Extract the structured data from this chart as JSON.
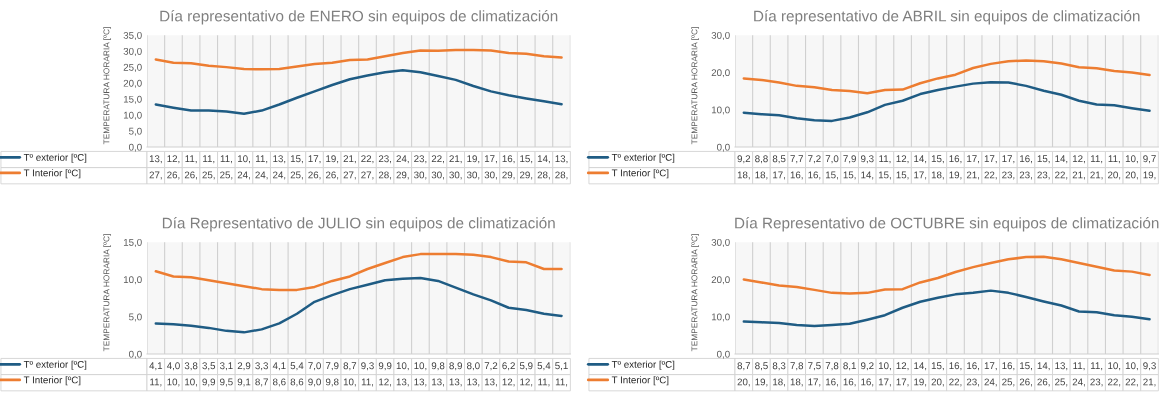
{
  "chart_data": [
    {
      "type": "line",
      "title": "Día representativo de ENERO sin equipos de climatización",
      "ylabel": "TEMPERATURA HORARIA [ºC]",
      "categories": [
        null,
        null,
        null,
        null,
        null,
        null,
        null,
        null,
        null,
        null,
        null,
        null,
        null,
        null,
        null,
        null,
        null,
        null,
        null,
        null,
        null,
        null,
        null,
        null
      ],
      "ylim": [
        0,
        35
      ],
      "yticks": [
        {
          "value": 0,
          "label": "0,0"
        },
        {
          "value": 5,
          "label": "5,0"
        },
        {
          "value": 10,
          "label": "10,0"
        },
        {
          "value": 15,
          "label": "15,0"
        },
        {
          "value": 20,
          "label": "20,0"
        },
        {
          "value": 25,
          "label": "25,0"
        },
        {
          "value": 30,
          "label": "30,0"
        },
        {
          "value": 35,
          "label": "35,0"
        }
      ],
      "grid": "x",
      "legend": "bottom",
      "series": [
        {
          "name": "Tº exterior [ºC]",
          "color": "#1f5c84",
          "values": [
            13.3,
            12.3,
            11.4,
            11.4,
            11.1,
            10.4,
            11.4,
            13.3,
            15.4,
            17.4,
            19.4,
            21.2,
            22.4,
            23.4,
            24.0,
            23.4,
            22.2,
            21.0,
            19.1,
            17.4,
            16.2,
            15.2,
            14.3,
            13.4
          ],
          "value_labels": [
            "13,",
            "12,",
            "11,",
            "11,",
            "11,",
            "10,",
            "11,",
            "13,",
            "15,",
            "17,",
            "19,",
            "21,",
            "22,",
            "23,",
            "24,",
            "23,",
            "22,",
            "21,",
            "19,",
            "17,",
            "16,",
            "15,",
            "14,",
            "13,"
          ]
        },
        {
          "name": "T Interior [ºC]",
          "color": "#ed7d31",
          "values": [
            27.4,
            26.4,
            26.2,
            25.4,
            25.0,
            24.4,
            24.3,
            24.4,
            25.2,
            26.0,
            26.4,
            27.2,
            27.4,
            28.4,
            29.4,
            30.2,
            30.1,
            30.4,
            30.4,
            30.2,
            29.4,
            29.2,
            28.4,
            28.0
          ],
          "value_labels": [
            "27,",
            "26,",
            "26,",
            "25,",
            "25,",
            "24,",
            "24,",
            "24,",
            "25,",
            "26,",
            "26,",
            "27,",
            "27,",
            "28,",
            "29,",
            "30,",
            "30,",
            "30,",
            "30,",
            "30,",
            "29,",
            "29,",
            "28,",
            "28,"
          ]
        }
      ]
    },
    {
      "type": "line",
      "title": "Día representativo de ABRIL sin equipos de climatización",
      "ylabel": "TEMPERATURA HORARIA [ºC]",
      "categories": [
        null,
        null,
        null,
        null,
        null,
        null,
        null,
        null,
        null,
        null,
        null,
        null,
        null,
        null,
        null,
        null,
        null,
        null,
        null,
        null,
        null,
        null,
        null,
        null
      ],
      "ylim": [
        0,
        30
      ],
      "yticks": [
        {
          "value": 0,
          "label": "0,0"
        },
        {
          "value": 10,
          "label": "10,0"
        },
        {
          "value": 20,
          "label": "20,0"
        },
        {
          "value": 30,
          "label": "30,0"
        }
      ],
      "grid": "x",
      "legend": "bottom",
      "series": [
        {
          "name": "Tº exterior [ºC]",
          "color": "#1f5c84",
          "values": [
            9.2,
            8.8,
            8.5,
            7.7,
            7.2,
            7.0,
            7.9,
            9.3,
            11.3,
            12.4,
            14.2,
            15.3,
            16.2,
            17.0,
            17.4,
            17.3,
            16.4,
            15.1,
            14.0,
            12.4,
            11.4,
            11.2,
            10.4,
            9.7
          ],
          "value_labels": [
            "9,2",
            "8,8",
            "8,5",
            "7,7",
            "7,2",
            "7,0",
            "7,9",
            "9,3",
            "11,",
            "12,",
            "14,",
            "15,",
            "16,",
            "17,",
            "17,",
            "17,",
            "16,",
            "15,",
            "14,",
            "12,",
            "11,",
            "11,",
            "10,",
            "9,7"
          ]
        },
        {
          "name": "T Interior [ºC]",
          "color": "#ed7d31",
          "values": [
            18.4,
            18.0,
            17.3,
            16.4,
            16.0,
            15.3,
            15.0,
            14.4,
            15.3,
            15.4,
            17.1,
            18.4,
            19.4,
            21.2,
            22.3,
            23.0,
            23.2,
            23.0,
            22.4,
            21.4,
            21.1,
            20.4,
            20.0,
            19.3
          ],
          "value_labels": [
            "18,",
            "18,",
            "17,",
            "16,",
            "16,",
            "15,",
            "15,",
            "14,",
            "15,",
            "15,",
            "17,",
            "18,",
            "19,",
            "21,",
            "22,",
            "23,",
            "23,",
            "23,",
            "22,",
            "21,",
            "21,",
            "20,",
            "20,",
            "19,"
          ]
        }
      ]
    },
    {
      "type": "line",
      "title": "Día Representativo de JULIO sin equipos de climatización",
      "ylabel": "TEMPERATURA HORARIA [ºC]",
      "categories": [
        null,
        null,
        null,
        null,
        null,
        null,
        null,
        null,
        null,
        null,
        null,
        null,
        null,
        null,
        null,
        null,
        null,
        null,
        null,
        null,
        null,
        null,
        null,
        null
      ],
      "ylim": [
        0,
        15
      ],
      "yticks": [
        {
          "value": 0,
          "label": "0,0"
        },
        {
          "value": 5,
          "label": "5,0"
        },
        {
          "value": 10,
          "label": "10,0"
        },
        {
          "value": 15,
          "label": "15,0"
        }
      ],
      "grid": "x",
      "legend": "bottom",
      "series": [
        {
          "name": "Tº exterior [ºC]",
          "color": "#1f5c84",
          "values": [
            4.1,
            4.0,
            3.8,
            3.5,
            3.1,
            2.9,
            3.3,
            4.1,
            5.4,
            7.0,
            7.9,
            8.7,
            9.3,
            9.9,
            10.1,
            10.2,
            9.8,
            8.9,
            8.0,
            7.2,
            6.2,
            5.9,
            5.4,
            5.1
          ],
          "value_labels": [
            "4,1",
            "4,0",
            "3,8",
            "3,5",
            "3,1",
            "2,9",
            "3,3",
            "4,1",
            "5,4",
            "7,0",
            "7,9",
            "8,7",
            "9,3",
            "9,9",
            "10,",
            "10,",
            "9,8",
            "8,9",
            "8,0",
            "7,2",
            "6,2",
            "5,9",
            "5,4",
            "5,1"
          ]
        },
        {
          "name": "T Interior [ºC]",
          "color": "#ed7d31",
          "values": [
            11.1,
            10.4,
            10.3,
            9.9,
            9.5,
            9.1,
            8.7,
            8.6,
            8.6,
            9.0,
            9.8,
            10.4,
            11.4,
            12.2,
            13.0,
            13.4,
            13.4,
            13.4,
            13.3,
            13.0,
            12.4,
            12.3,
            11.4,
            11.4
          ],
          "value_labels": [
            "11,",
            "10,",
            "10,",
            "9,9",
            "9,5",
            "9,1",
            "8,7",
            "8,6",
            "8,6",
            "9,0",
            "9,8",
            "10,",
            "11,",
            "12,",
            "13,",
            "13,",
            "13,",
            "13,",
            "13,",
            "13,",
            "12,",
            "12,",
            "11,",
            "11,"
          ]
        }
      ]
    },
    {
      "type": "line",
      "title": "Día Representativo de OCTUBRE sin equipos de climatización",
      "ylabel": "TEMPERATURA HORARIA [ºC]",
      "categories": [
        null,
        null,
        null,
        null,
        null,
        null,
        null,
        null,
        null,
        null,
        null,
        null,
        null,
        null,
        null,
        null,
        null,
        null,
        null,
        null,
        null,
        null,
        null,
        null
      ],
      "ylim": [
        0,
        30
      ],
      "yticks": [
        {
          "value": 0,
          "label": "0,0"
        },
        {
          "value": 10,
          "label": "10,0"
        },
        {
          "value": 20,
          "label": "20,0"
        },
        {
          "value": 30,
          "label": "30,0"
        }
      ],
      "grid": "x",
      "legend": "bottom",
      "series": [
        {
          "name": "Tº exterior [ºC]",
          "color": "#1f5c84",
          "values": [
            8.7,
            8.5,
            8.3,
            7.8,
            7.5,
            7.8,
            8.1,
            9.2,
            10.4,
            12.4,
            14.0,
            15.1,
            16.0,
            16.4,
            17.0,
            16.4,
            15.3,
            14.1,
            13.0,
            11.4,
            11.2,
            10.4,
            10.0,
            9.3
          ],
          "value_labels": [
            "8,7",
            "8,5",
            "8,3",
            "7,8",
            "7,5",
            "7,8",
            "8,1",
            "9,2",
            "10,",
            "12,",
            "14,",
            "15,",
            "16,",
            "16,",
            "17,",
            "16,",
            "15,",
            "14,",
            "13,",
            "11,",
            "11,",
            "10,",
            "10,",
            "9,3"
          ]
        },
        {
          "name": "T Interior [ºC]",
          "color": "#ed7d31",
          "values": [
            20.0,
            19.2,
            18.4,
            18.0,
            17.2,
            16.4,
            16.2,
            16.4,
            17.3,
            17.4,
            19.2,
            20.4,
            22.0,
            23.3,
            24.4,
            25.4,
            26.0,
            26.1,
            25.4,
            24.4,
            23.4,
            22.4,
            22.1,
            21.2
          ],
          "value_labels": [
            "20,",
            "19,",
            "18,",
            "18,",
            "17,",
            "16,",
            "16,",
            "16,",
            "17,",
            "17,",
            "19,",
            "20,",
            "22,",
            "23,",
            "24,",
            "25,",
            "26,",
            "26,",
            "25,",
            "24,",
            "23,",
            "22,",
            "22,",
            "21,"
          ]
        }
      ]
    }
  ]
}
